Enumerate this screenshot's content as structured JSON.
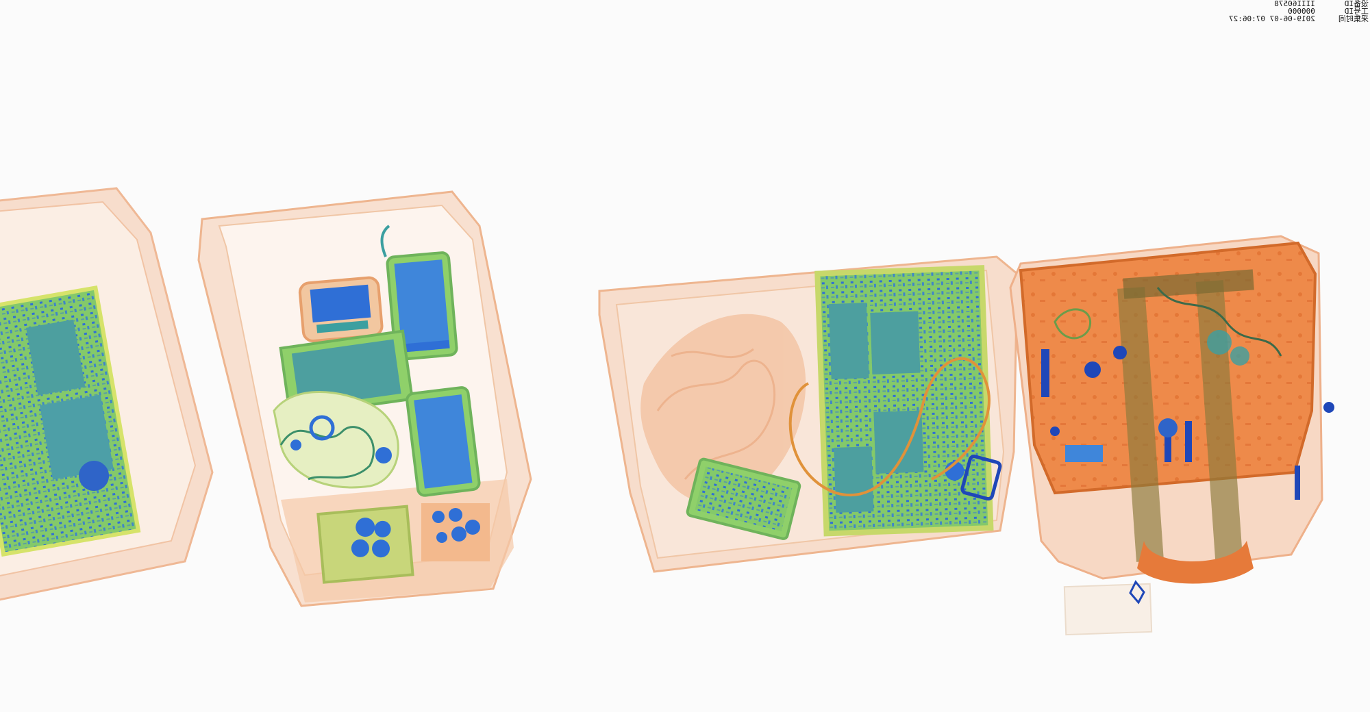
{
  "scan_overlay": {
    "device_id_label": "设备ID",
    "device_id_value": "IIII60578",
    "operator_id_label": "工号ID",
    "operator_id_value": "000000",
    "capture_time_label": "采集时间",
    "capture_time_value": "2019-06-07 07:06:27",
    "mirrored": true
  },
  "scene": {
    "colors": {
      "background": "#fbfbfb",
      "tray_light": "#f6d7c4",
      "tray_edge": "#eaa27a",
      "organic": "#ea7a3a",
      "inorganic_green": "#8fd06a",
      "metal_blue": "#2f6fd6",
      "teal": "#3c9fa0"
    },
    "objects": [
      {
        "kind": "tray",
        "contents": [
          "circuit-board"
        ]
      },
      {
        "kind": "tray",
        "contents": [
          "power-bank",
          "phone",
          "tablet",
          "phone",
          "cable-bundle",
          "coin-pouch",
          "coin-pouch"
        ]
      },
      {
        "kind": "tray",
        "contents": [
          "clothing",
          "phone",
          "laptop",
          "cable",
          "key"
        ]
      },
      {
        "kind": "bag",
        "contents": [
          "tools",
          "handle",
          "cables",
          "small-items"
        ]
      }
    ]
  }
}
